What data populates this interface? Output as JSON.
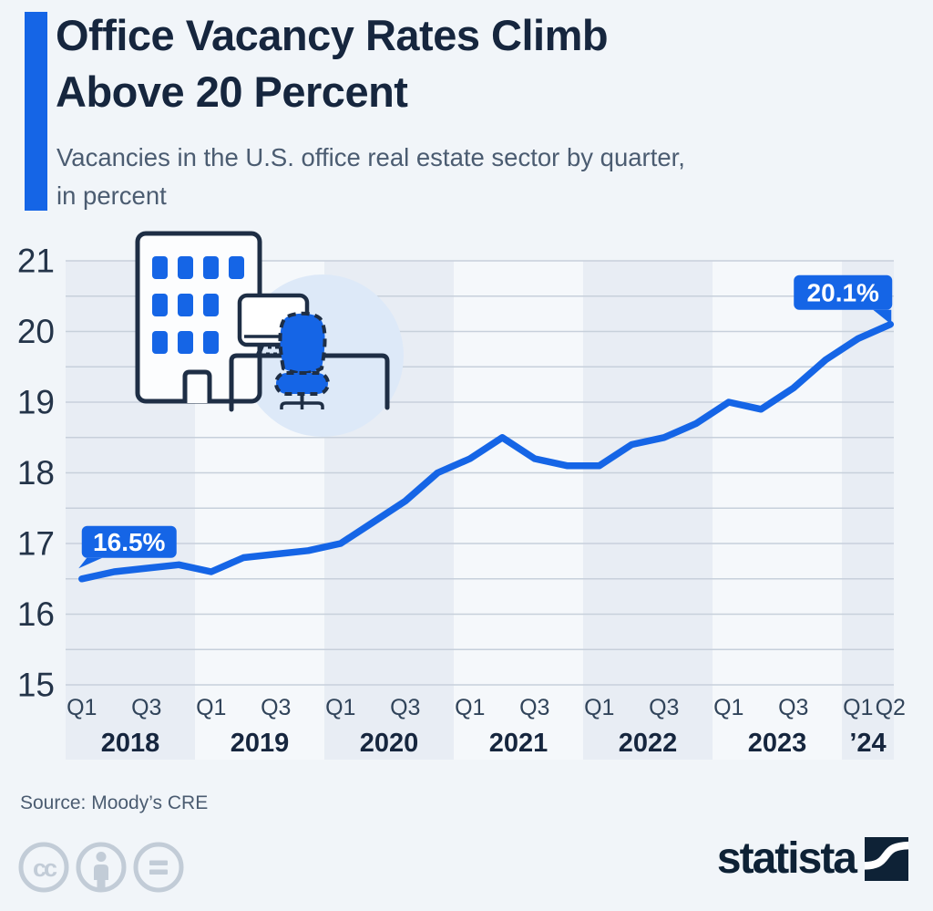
{
  "header": {
    "title_lines": [
      "Office Vacancy Rates Climb",
      "Above 20 Percent"
    ],
    "subtitle_lines": [
      "Vacancies in the U.S. office real estate sector by quarter,",
      "in percent"
    ]
  },
  "chart_data": {
    "type": "line",
    "title": "Office Vacancy Rates Climb Above 20 Percent",
    "subtitle": "Vacancies in the U.S. office real estate sector by quarter, in percent",
    "unit": "percent",
    "x": [
      "Q1 2018",
      "Q2 2018",
      "Q3 2018",
      "Q4 2018",
      "Q1 2019",
      "Q2 2019",
      "Q3 2019",
      "Q4 2019",
      "Q1 2020",
      "Q2 2020",
      "Q3 2020",
      "Q4 2020",
      "Q1 2021",
      "Q2 2021",
      "Q3 2021",
      "Q4 2021",
      "Q1 2022",
      "Q2 2022",
      "Q3 2022",
      "Q4 2022",
      "Q1 2023",
      "Q2 2023",
      "Q3 2023",
      "Q4 2023",
      "Q1 2024",
      "Q2 2024"
    ],
    "series": [
      {
        "name": "U.S. office vacancy rate",
        "values": [
          16.5,
          16.6,
          16.65,
          16.7,
          16.6,
          16.8,
          16.85,
          16.9,
          17.0,
          17.3,
          17.6,
          18.0,
          18.2,
          18.5,
          18.2,
          18.1,
          18.1,
          18.4,
          18.5,
          18.7,
          19.0,
          18.9,
          19.2,
          19.6,
          19.9,
          20.1
        ]
      }
    ],
    "ylim": [
      15,
      21
    ],
    "yticks": [
      21,
      20,
      19,
      18,
      17,
      16,
      15
    ],
    "grid_step": 0.5,
    "grid": true,
    "legend_position": "none",
    "point_labels": [
      {
        "x_index": 0,
        "text": "16.5%",
        "side": "left"
      },
      {
        "x_index": 25,
        "text": "20.1%",
        "side": "right"
      }
    ],
    "x_groups": [
      {
        "year": "2018",
        "quarters": 4,
        "shaded": true,
        "ticks": [
          [
            "Q1",
            0
          ],
          [
            "Q3",
            2
          ]
        ]
      },
      {
        "year": "2019",
        "quarters": 4,
        "shaded": false,
        "ticks": [
          [
            "Q1",
            0
          ],
          [
            "Q3",
            2
          ]
        ]
      },
      {
        "year": "2020",
        "quarters": 4,
        "shaded": true,
        "ticks": [
          [
            "Q1",
            0
          ],
          [
            "Q3",
            2
          ]
        ]
      },
      {
        "year": "2021",
        "quarters": 4,
        "shaded": false,
        "ticks": [
          [
            "Q1",
            0
          ],
          [
            "Q3",
            2
          ]
        ]
      },
      {
        "year": "2022",
        "quarters": 4,
        "shaded": true,
        "ticks": [
          [
            "Q1",
            0
          ],
          [
            "Q3",
            2
          ]
        ]
      },
      {
        "year": "2023",
        "quarters": 4,
        "shaded": false,
        "ticks": [
          [
            "Q1",
            0
          ],
          [
            "Q3",
            2
          ]
        ]
      },
      {
        "year": "’24",
        "quarters": 2,
        "shaded": true,
        "ticks": [
          [
            "Q1",
            0
          ],
          [
            "Q2",
            1
          ]
        ]
      }
    ]
  },
  "footer": {
    "source": "Source: Moody’s CRE",
    "brand_wordmark": "statista",
    "license_icons": [
      "cc-icon",
      "attribution-icon",
      "equals-icon"
    ]
  },
  "colors": {
    "accent_blue": "#1565e6",
    "title_navy": "#16263e",
    "subtitle_gray": "#4b5c71",
    "background": "#f1f5f9",
    "band_shaded": "#e8edf4",
    "band_unshaded": "#f5f8fb",
    "gridline": "#c7d0db",
    "axis_label": "#243449",
    "tick_label": "#31445a",
    "bubble_text": "#ffffff",
    "illustration_outline": "#1e2e45",
    "illustration_circle": "#dde9f8",
    "license_gray": "#c2ccd7",
    "brand_navy": "#0e2236"
  }
}
